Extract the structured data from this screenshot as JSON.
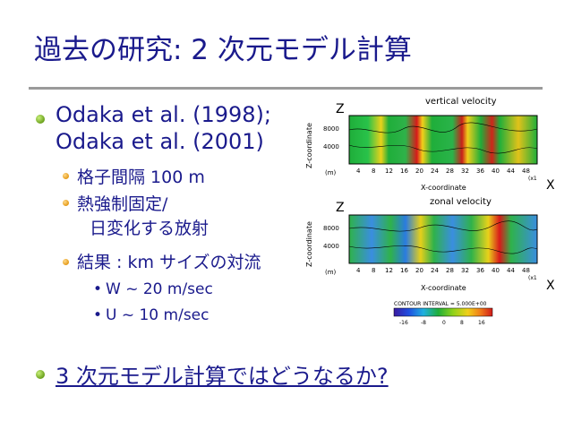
{
  "title": "過去の研究: 2 次元モデル計算",
  "bullets": {
    "b1_line1": "Odaka et al. (1998);",
    "b1_line2": "Odaka et al. (2001)",
    "sub1": "格子間隔 100 m",
    "sub2_line1": "熱強制固定/",
    "sub2_line2": "日変化する放射",
    "sub3": "結果 : km サイズの対流",
    "subsub1": "W ~ 20 m/sec",
    "subsub2": "U  ~ 10 m/sec",
    "b2": "3 次元モデル計算ではどうなるか?"
  },
  "figure": {
    "top_title": "vertical velocity",
    "bottom_title": "zonal velocity",
    "z_label": "Z",
    "x_label": "X",
    "y_axis_title": "Z-coordinate",
    "x_axis_title": "X-coordinate",
    "y_unit": "(m)",
    "x_unit": "(x1",
    "y_ticks": [
      "8000",
      "4000"
    ],
    "x_ticks": [
      "4",
      "8",
      "12",
      "16",
      "20",
      "24",
      "28",
      "32",
      "36",
      "40",
      "44",
      "48"
    ],
    "contour_interval": "CONTOUR INTERVAL = 5.000E+00",
    "colorbar_ticks": [
      "-16",
      "-8",
      "0",
      "8",
      "16"
    ]
  },
  "colors": {
    "text": "#1a1a8c",
    "bullet_l1": "#6aa01c",
    "bullet_l2": "#e59b1a",
    "rule": "#9a9a9a"
  }
}
